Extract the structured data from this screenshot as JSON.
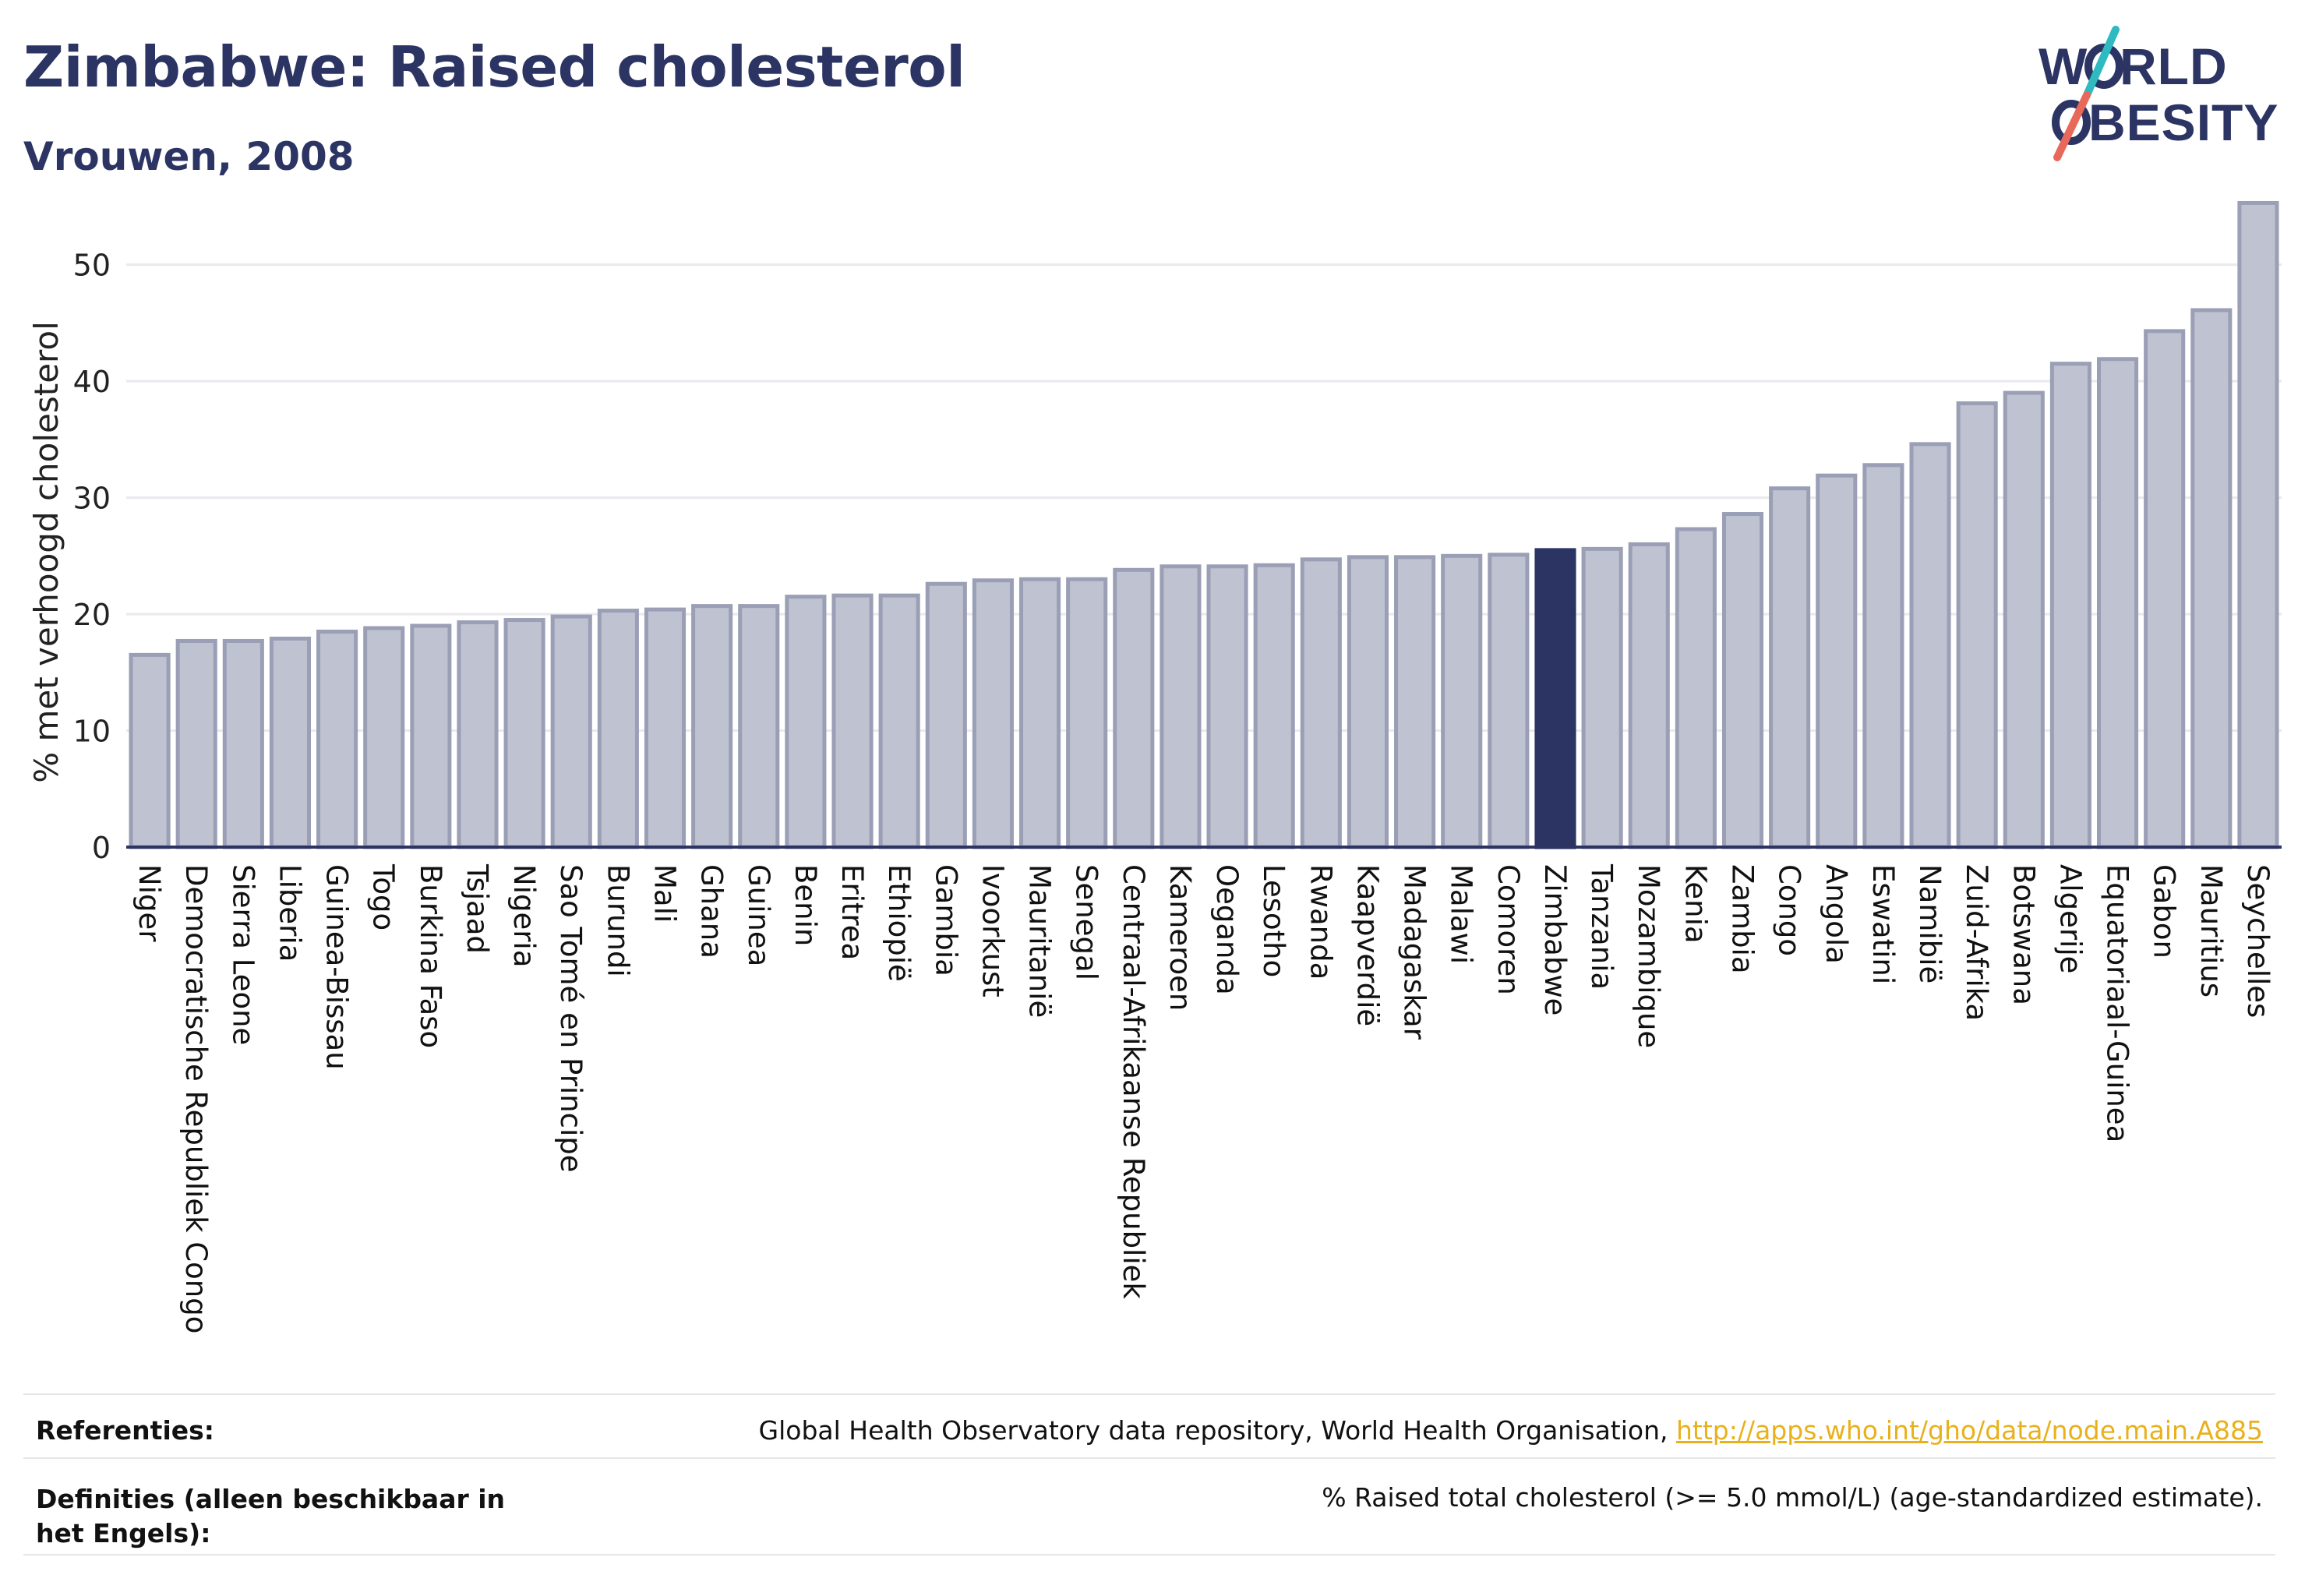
{
  "header": {
    "title": "Zimbabwe: Raised cholesterol",
    "subtitle": "Vrouwen, 2008"
  },
  "logo": {
    "line1": "W RLD",
    "line2": "BESITY",
    "text": "WORLD OBESITY"
  },
  "chart_data": {
    "type": "bar",
    "ylabel": "% met verhoogd cholesterol",
    "ylim": [
      0,
      56
    ],
    "yticks": [
      0,
      10,
      20,
      30,
      40,
      50
    ],
    "grid": true,
    "highlight": "Zimbabwe",
    "colors": {
      "bar": "#bfc2d0",
      "bar_edge": "#9a9fb6",
      "highlight": "#2b3463",
      "grid": "#e9e9ee",
      "axis": "#2b3463"
    },
    "categories": [
      "Niger",
      "Democratische Republiek Congo",
      "Sierra Leone",
      "Liberia",
      "Guinea-Bissau",
      "Togo",
      "Burkina Faso",
      "Tsjaad",
      "Nigeria",
      "Sao Tomé en Principe",
      "Burundi",
      "Mali",
      "Ghana",
      "Guinea",
      "Benin",
      "Eritrea",
      "Ethiopië",
      "Gambia",
      "Ivoorkust",
      "Mauritanië",
      "Senegal",
      "Centraal-Afrikaanse Republiek",
      "Kameroen",
      "Oeganda",
      "Lesotho",
      "Rwanda",
      "Kaapverdië",
      "Madagaskar",
      "Malawi",
      "Comoren",
      "Zimbabwe",
      "Tanzania",
      "Mozambique",
      "Kenia",
      "Zambia",
      "Congo",
      "Angola",
      "Eswatini",
      "Namibië",
      "Zuid-Afrika",
      "Botswana",
      "Algerije",
      "Equatoriaal-Guinea",
      "Gabon",
      "Mauritius",
      "Seychelles"
    ],
    "values": [
      16.5,
      17.7,
      17.7,
      17.9,
      18.5,
      18.8,
      19.0,
      19.3,
      19.5,
      19.8,
      20.3,
      20.4,
      20.7,
      20.7,
      21.5,
      21.6,
      21.6,
      22.6,
      22.9,
      23.0,
      23.0,
      23.8,
      24.1,
      24.1,
      24.2,
      24.7,
      24.9,
      24.9,
      25.0,
      25.1,
      25.5,
      25.6,
      26.0,
      27.3,
      28.6,
      30.8,
      31.9,
      32.8,
      34.6,
      38.1,
      39.0,
      41.5,
      41.9,
      44.3,
      46.1,
      55.3
    ]
  },
  "footer": {
    "references_label": "Referenties:",
    "references_text": "Global Health Observatory data repository, World Health Organisation, ",
    "references_link": "http://apps.who.int/gho/data/node.main.A885",
    "definitions_label": "Definities (alleen beschikbaar in het Engels):",
    "definitions_text": "% Raised total cholesterol (>= 5.0 mmol/L) (age-standardized estimate)."
  }
}
